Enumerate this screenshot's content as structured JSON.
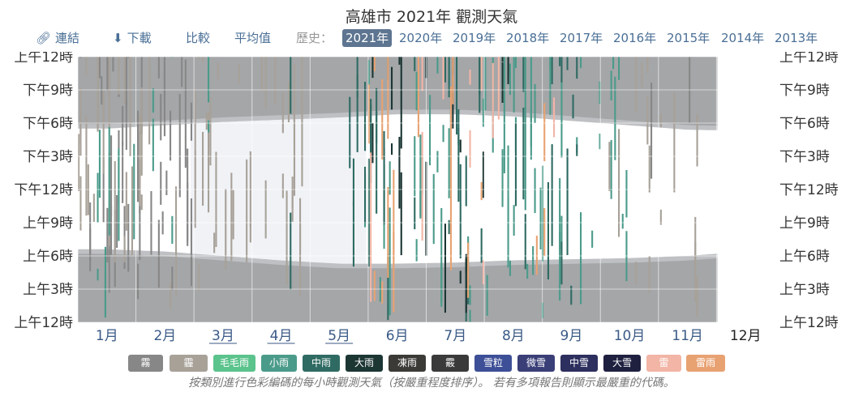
{
  "page": {
    "title": "高雄市 2021年 觀測天氣",
    "note": "按類別進行色彩編碼的每小時觀測天氣（按嚴重程度排序）。 若有多項報告則顯示最嚴重的代碼。"
  },
  "toolbar": {
    "link_label": "連結",
    "download_label": "下載",
    "compare_label": "比較",
    "average_label": "平均值",
    "history_label": "歷史：",
    "years": [
      "2021年",
      "2020年",
      "2019年",
      "2018年",
      "2017年",
      "2016年",
      "2015年",
      "2014年",
      "2013年"
    ],
    "selected_year": "2021年",
    "link_icon": "link-icon",
    "download_icon": "download-icon"
  },
  "chart_data": {
    "type": "heatmap",
    "title": "高雄市 2021年 觀測天氣",
    "x_axis": {
      "label": "",
      "months": [
        "1月",
        "2月",
        "3月",
        "4月",
        "5月",
        "6月",
        "7月",
        "8月",
        "9月",
        "10月",
        "11月",
        "12月"
      ],
      "underlined_months": [
        "3月",
        "4月",
        "5月"
      ],
      "bold_months": [
        "12月"
      ],
      "days_in_year": 365
    },
    "y_axis": {
      "label": "",
      "ticks": [
        "上午12時",
        "上午3時",
        "上午6時",
        "上午9時",
        "下午12時",
        "下午3時",
        "下午6時",
        "下午9時",
        "上午12時"
      ],
      "tick_hours": [
        0,
        3,
        6,
        9,
        12,
        15,
        18,
        21,
        24
      ],
      "range": [
        0,
        24
      ]
    },
    "observations_end_day": 335,
    "daylight": {
      "sunrise_hours_approx": [
        6.6,
        6.4,
        6.0,
        5.6,
        5.3,
        5.3,
        5.4,
        5.6,
        5.7,
        5.8,
        6.0,
        6.4
      ],
      "sunset_hours_approx": [
        17.5,
        17.8,
        18.1,
        18.3,
        18.5,
        18.8,
        18.8,
        18.6,
        18.2,
        17.8,
        17.4,
        17.3
      ],
      "twilight_minutes": 25
    },
    "categories": [
      {
        "key": "fog",
        "label": "霧",
        "color": "#878787"
      },
      {
        "key": "haze",
        "label": "霾",
        "color": "#a7a198"
      },
      {
        "key": "drizzle",
        "label": "毛毛雨",
        "color": "#5bc38c"
      },
      {
        "key": "light_rain",
        "label": "小雨",
        "color": "#4b9b8a"
      },
      {
        "key": "moderate_rain",
        "label": "中雨",
        "color": "#2f6b63"
      },
      {
        "key": "heavy_rain",
        "label": "大雨",
        "color": "#1c3634"
      },
      {
        "key": "freezing_rain",
        "label": "凍雨",
        "color": "#3c3a37"
      },
      {
        "key": "hail",
        "label": "霰",
        "color": "#3a3a3a"
      },
      {
        "key": "sleet",
        "label": "雪粒",
        "color": "#3d4f97"
      },
      {
        "key": "light_snow",
        "label": "微雪",
        "color": "#3a3f78"
      },
      {
        "key": "moderate_snow",
        "label": "中雪",
        "color": "#2d2f5e"
      },
      {
        "key": "heavy_snow",
        "label": "大雪",
        "color": "#1f2040"
      },
      {
        "key": "thunder",
        "label": "雷",
        "color": "#f2b5a6"
      },
      {
        "key": "thunderstorm",
        "label": "雷雨",
        "color": "#e8a272"
      }
    ],
    "observation_bands": [
      {
        "start_day": 0,
        "end_day": 60,
        "category": "fog",
        "density": 0.35
      },
      {
        "start_day": 0,
        "end_day": 120,
        "category": "haze",
        "density": 0.25
      },
      {
        "start_day": 10,
        "end_day": 70,
        "category": "light_rain",
        "density": 0.08
      },
      {
        "start_day": 100,
        "end_day": 150,
        "category": "moderate_rain",
        "density": 0.06
      },
      {
        "start_day": 150,
        "end_day": 265,
        "category": "light_rain",
        "density": 0.22
      },
      {
        "start_day": 150,
        "end_day": 265,
        "category": "moderate_rain",
        "density": 0.12
      },
      {
        "start_day": 150,
        "end_day": 265,
        "category": "heavy_rain",
        "density": 0.05
      },
      {
        "start_day": 150,
        "end_day": 250,
        "category": "thunderstorm",
        "density": 0.15
      },
      {
        "start_day": 150,
        "end_day": 250,
        "category": "thunder",
        "density": 0.06
      },
      {
        "start_day": 265,
        "end_day": 290,
        "category": "light_rain",
        "density": 0.12
      },
      {
        "start_day": 265,
        "end_day": 335,
        "category": "haze",
        "density": 0.1
      },
      {
        "start_day": 290,
        "end_day": 335,
        "category": "fog",
        "density": 0.08
      }
    ],
    "colors": {
      "night": "#a4a6a8",
      "twilight": "#bec0c3",
      "day": "#ffffff",
      "grid": "#ffffff",
      "axis_text": "#333333",
      "month_text": "#3a5a86"
    }
  }
}
